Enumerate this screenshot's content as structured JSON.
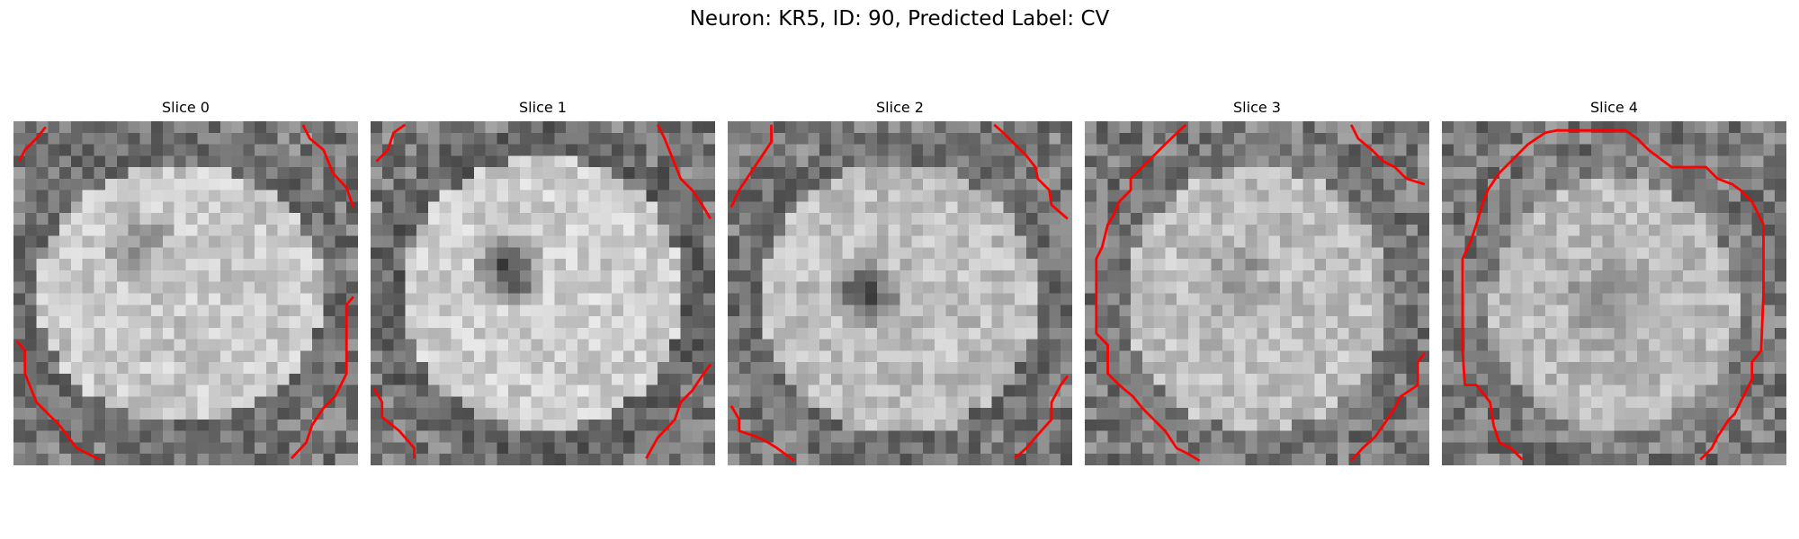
{
  "figure": {
    "title": "Neuron: KR5, ID: 90, Predicted Label: CV"
  },
  "contour_color": "#ff0000",
  "slices": [
    {
      "title": "Slice 0"
    },
    {
      "title": "Slice 1"
    },
    {
      "title": "Slice 2"
    },
    {
      "title": "Slice 3"
    },
    {
      "title": "Slice 4"
    }
  ]
}
